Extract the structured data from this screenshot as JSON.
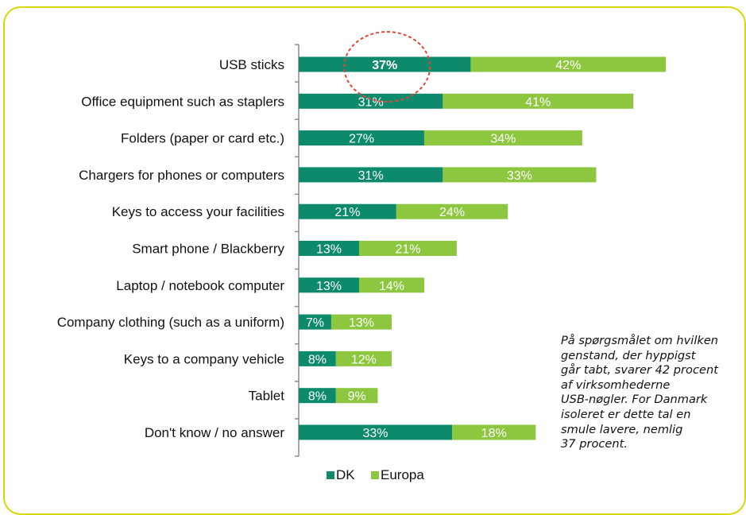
{
  "chart_data": {
    "type": "bar",
    "orientation": "horizontal",
    "stacked": true,
    "categories": [
      "USB sticks",
      "Office equipment such as staplers",
      "Folders (paper or card etc.)",
      "Chargers for phones or computers",
      "Keys to access your facilities",
      "Smart phone / Blackberry",
      "Laptop / notebook computer",
      "Company clothing (such as a uniform)",
      "Keys to a company vehicle",
      "Tablet",
      "Don't know / no answer"
    ],
    "series": [
      {
        "name": "DK",
        "color": "#0d8a6b",
        "values": [
          37,
          31,
          27,
          31,
          21,
          13,
          13,
          7,
          8,
          8,
          33
        ]
      },
      {
        "name": "Europa",
        "color": "#8dc63f",
        "values": [
          42,
          41,
          34,
          33,
          24,
          21,
          14,
          13,
          12,
          9,
          18
        ]
      }
    ],
    "value_suffix": "%",
    "legend_position": "bottom",
    "grid": false,
    "highlight": {
      "category": "USB sticks",
      "series": "DK",
      "marker": "dashed-red-circle",
      "color": "#e0473a"
    }
  },
  "annotation": {
    "lines": [
      "På spørgsmålet om hvilken",
      "genstand, der hyppigst",
      "går tabt, svarer 42 procent",
      "af virksomhederne",
      "USB-nøgler. For Danmark",
      "isoleret er dette tal en",
      "smule lavere, nemlig",
      "37 procent."
    ]
  },
  "colors": {
    "frame_border": "#d5d900",
    "axis": "#8c8c8c"
  }
}
